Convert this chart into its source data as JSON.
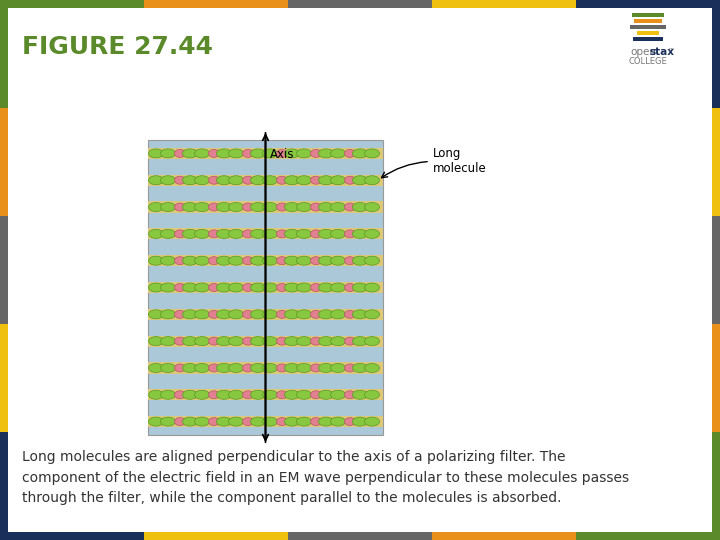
{
  "title": "FIGURE 27.44",
  "title_color": "#5a8a2a",
  "title_fontsize": 18,
  "bg_color": "#ffffff",
  "top_border_colors": [
    "#5a8a2a",
    "#e8901a",
    "#666666",
    "#f0c010",
    "#1a2f5a"
  ],
  "left_border_colors": [
    "#1a2f5a",
    "#f0c010",
    "#666666",
    "#e8901a",
    "#5a8a2a"
  ],
  "right_border_colors": [
    "#5a8a2a",
    "#e8901a",
    "#666666",
    "#f0c010",
    "#1a2f5a"
  ],
  "bottom_border_colors": [
    "#1a2f5a",
    "#f0c010",
    "#666666",
    "#e8901a",
    "#5a8a2a"
  ],
  "border_thickness": 8,
  "diagram": {
    "bg_color": "#aac8d8",
    "band_color": "#ddc878",
    "green_color": "#88c840",
    "pink_color": "#e08090",
    "green_dark": "#559922",
    "pink_dark": "#bb5566"
  },
  "caption": "Long molecules are aligned perpendicular to the axis of a polarizing filter. The\ncomponent of the electric field in an EM wave perpendicular to these molecules passes\nthrough the filter, while the component parallel to the molecules is absorbed.",
  "caption_fontsize": 10,
  "caption_color": "#333333",
  "openstax_logo_colors": [
    "#5a8a2a",
    "#e8901a",
    "#666666",
    "#f0c010",
    "#1a2f5a"
  ],
  "openstax_logo_widths": [
    32,
    28,
    36,
    22,
    30
  ],
  "annotation_axis": "Axis",
  "annotation_molecule": "Long\nmolecule"
}
